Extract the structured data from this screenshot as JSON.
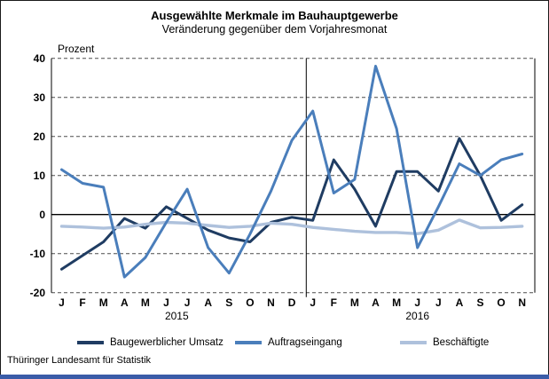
{
  "header": {
    "title": "Ausgewählte Merkmale im Bauhauptgewerbe",
    "subtitle": "Veränderung gegenüber dem Vorjahresmonat"
  },
  "axis_unit_label": "Prozent",
  "footer": {
    "source": "Thüringer Landesamt für Statistik"
  },
  "colors": {
    "bottom_bar": "#3a5ca8",
    "zero_line": "#000000",
    "gridline": "#4d4d4d"
  },
  "chart_data": {
    "type": "line",
    "ylim": [
      -20,
      40
    ],
    "y_ticks": [
      40,
      30,
      20,
      10,
      0,
      -10,
      -20
    ],
    "grid": "dashed-horizontal",
    "legend_position": "bottom",
    "year_groups": [
      {
        "year": "2015",
        "months": [
          "J",
          "F",
          "M",
          "A",
          "M",
          "J",
          "J",
          "A",
          "S",
          "O",
          "N",
          "D"
        ]
      },
      {
        "year": "2016",
        "months": [
          "J",
          "F",
          "M",
          "A",
          "M",
          "J",
          "J",
          "A",
          "S",
          "O",
          "N"
        ]
      }
    ],
    "series": [
      {
        "name": "Baugewerblicher Umsatz",
        "color": "#1f3c62",
        "values": [
          -14,
          -10.5,
          -7,
          -1,
          -3.5,
          2,
          -1,
          -4,
          -6,
          -7,
          -2,
          -0.7,
          -1.5,
          14,
          6.5,
          -3,
          11,
          11,
          6,
          19.5,
          10,
          -1.5,
          2.5
        ]
      },
      {
        "name": "Auftragseingang",
        "color": "#4a7ebb",
        "values": [
          11.5,
          8,
          7,
          -16,
          -11,
          -2,
          6.5,
          -8.5,
          -15,
          -5,
          6,
          19,
          26.5,
          5.5,
          9,
          38,
          22,
          -8.5,
          2,
          13,
          10,
          14,
          15.5
        ]
      },
      {
        "name": "Beschäftigte",
        "color": "#aec1dc",
        "values": [
          -3,
          -3.2,
          -3.5,
          -3.2,
          -2.5,
          -2,
          -2.2,
          -2.8,
          -3.3,
          -3,
          -2.2,
          -2.5,
          -3.3,
          -3.8,
          -4.3,
          -4.6,
          -4.6,
          -4.9,
          -4,
          -1.4,
          -3.4,
          -3.3,
          -3
        ]
      }
    ]
  }
}
